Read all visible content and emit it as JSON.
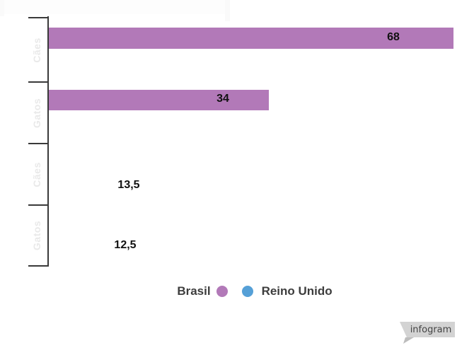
{
  "chart_data": {
    "type": "bar",
    "orientation": "horizontal",
    "title": "",
    "xlabel": "",
    "ylabel": "",
    "grid": false,
    "legend_position": "bottom",
    "categories": [
      "Cães",
      "Gatos",
      "Cães",
      "Gatos"
    ],
    "series": [
      {
        "name": "Brasil",
        "color": "#b279b8"
      },
      {
        "name": "Reino Unido",
        "color": "#55a0d7"
      }
    ],
    "rows": [
      {
        "category": "Cães",
        "series": "Brasil",
        "value": 68,
        "value_label": "68",
        "bar_shown": true
      },
      {
        "category": "Gatos",
        "series": "Brasil",
        "value": 34,
        "value_label": "34",
        "bar_shown": true
      },
      {
        "category": "Cães",
        "series": "Reino Unido",
        "value": 13.5,
        "value_label": "13,5",
        "bar_shown": false
      },
      {
        "category": "Gatos",
        "series": "Reino Unido",
        "value": 12.5,
        "value_label": "12,5",
        "bar_shown": false
      }
    ],
    "note": "Reino Unido bars not rendered in screenshot (mid-animation); only value labels visible"
  },
  "legend": {
    "items": [
      {
        "label": "Brasil",
        "color": "#b279b8"
      },
      {
        "label": "Reino Unido",
        "color": "#55a0d7"
      }
    ]
  },
  "branding": {
    "label": "infogram"
  },
  "colors": {
    "axis": "#3a3a3a",
    "category_label": "#e9e9e9",
    "value_label": "#111111",
    "legend_text": "#3d3d3d",
    "badge_fill": "#d3d3d3",
    "badge_tail": "#bdbdbd",
    "badge_text": "#444444"
  }
}
